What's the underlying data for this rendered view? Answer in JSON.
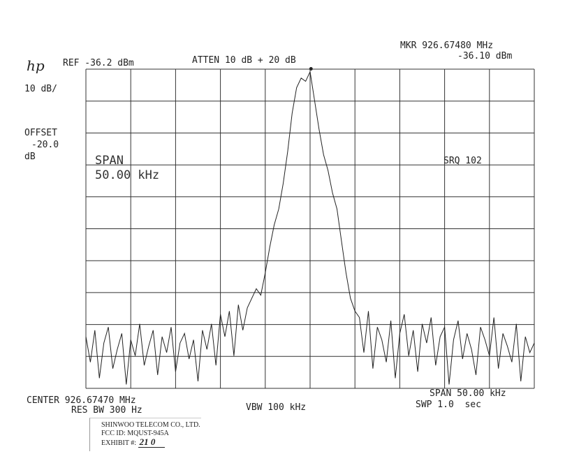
{
  "header": {
    "logo": "hp",
    "ref": "REF -36.2 dBm",
    "atten": "ATTEN 10 dB + 20 dB",
    "marker_freq": "MKR 926.67480 MHz",
    "marker_level": "-36.10 dBm",
    "scale": "10 dB/",
    "offset_label": "OFFSET",
    "offset_value": "-20.0",
    "offset_unit": "dB",
    "span_label": "SPAN",
    "span_value": "50.00 kHz",
    "srq": "SRQ 102"
  },
  "footer": {
    "center": "CENTER 926.67470 MHz",
    "res_bw": "RES BW 300 Hz",
    "vbw": "VBW 100 kHz",
    "span": "SPAN 50.00 kHz",
    "swp": "SWP 1.0  sec"
  },
  "stamp": {
    "company": "SHINWOO TELECOM CO., LTD.",
    "fcc_id": "FCC ID: MQUST-945A",
    "exhibit_label": "EXHIBIT #:",
    "exhibit_value": "21 0"
  },
  "chart_data": {
    "type": "line",
    "title": "",
    "xlabel": "",
    "ylabel": "",
    "x_start_mhz": 926.6497,
    "x_stop_mhz": 926.6997,
    "ylim": [
      -136.2,
      -36.2
    ],
    "x_divisions": 10,
    "y_divisions": 10,
    "grid": true,
    "marker": {
      "freq_mhz": 926.6748,
      "level_dbm": -36.1
    },
    "trace_color": "#222222",
    "values_dbm": [
      -120,
      -128,
      -118,
      -133,
      -122,
      -117,
      -130,
      -124,
      -119,
      -135,
      -121,
      -126,
      -116,
      -129,
      -123,
      -118,
      -132,
      -120,
      -125,
      -117,
      -131,
      -122,
      -119,
      -127,
      -121,
      -134,
      -118,
      -124,
      -116,
      -129,
      -113,
      -120,
      -112,
      -126,
      -110,
      -118,
      -111,
      -108,
      -105,
      -107,
      -100,
      -92,
      -85,
      -80,
      -72,
      -62,
      -50,
      -42,
      -39,
      -40,
      -37,
      -46,
      -55,
      -63,
      -68,
      -75,
      -80,
      -90,
      -100,
      -108,
      -112,
      -114,
      -125,
      -112,
      -130,
      -117,
      -121,
      -128,
      -115,
      -133,
      -119,
      -113,
      -126,
      -118,
      -131,
      -116,
      -122,
      -114,
      -129,
      -120,
      -117,
      -135,
      -121,
      -115,
      -127,
      -119,
      -124,
      -132,
      -117,
      -121,
      -126,
      -114,
      -130,
      -119,
      -123,
      -128,
      -116,
      -134,
      -120,
      -125,
      -122
    ]
  }
}
